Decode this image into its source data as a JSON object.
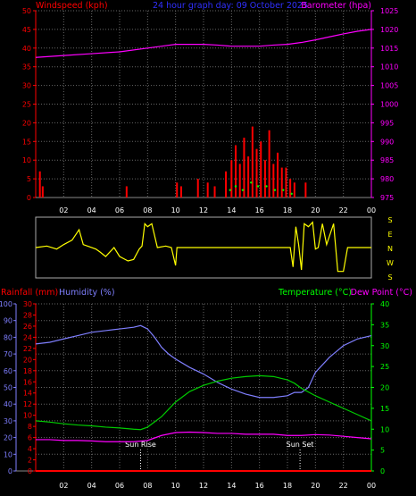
{
  "chart_data": [
    {
      "type": "line",
      "title": "24 hour graph day: 09 October 2025",
      "ylabel": "Windspeed (kph)",
      "y2label": "Barometer (hpa)",
      "ylim": [
        0,
        50
      ],
      "y2lim": [
        975,
        1025
      ],
      "yticks": [
        "0",
        "5",
        "10",
        "15",
        "20",
        "25",
        "30",
        "35",
        "40",
        "45",
        "50"
      ],
      "y2ticks": [
        "975",
        "980",
        "985",
        "990",
        "995",
        "1000",
        "1005",
        "1010",
        "1015",
        "1020",
        "1025"
      ],
      "xlim": [
        0,
        24
      ],
      "xticks": [
        "02",
        "04",
        "06",
        "08",
        "10",
        "12",
        "14",
        "16",
        "18",
        "20",
        "22",
        "00"
      ],
      "grid": true,
      "series": [
        {
          "name": "Barometer (hpa)",
          "axis": "right",
          "color": "#ff00ff",
          "x": [
            0,
            2,
            4,
            6,
            8,
            9,
            10,
            11,
            12,
            13,
            14,
            15,
            16,
            17,
            18,
            19,
            20,
            21,
            22,
            23,
            24
          ],
          "y": [
            1012.5,
            1013,
            1013.5,
            1014,
            1015,
            1015.5,
            1016,
            1016,
            1016,
            1015.8,
            1015.5,
            1015.5,
            1015.5,
            1015.8,
            1016,
            1016.5,
            1017.2,
            1018,
            1018.8,
            1019.5,
            1020
          ]
        },
        {
          "name": "Windspeed (kph)",
          "axis": "left",
          "color": "#ff0000",
          "style": "bars",
          "x": [
            0.3,
            0.5,
            6.5,
            10.1,
            10.4,
            11.6,
            12.3,
            12.8,
            13.6,
            14.0,
            14.3,
            14.6,
            14.9,
            15.2,
            15.5,
            15.8,
            16.1,
            16.4,
            16.7,
            17.0,
            17.3,
            17.6,
            17.9,
            18.2,
            18.5,
            19.3
          ],
          "y": [
            7,
            3,
            3,
            4,
            3,
            5,
            4,
            3,
            7,
            10,
            14,
            9,
            16,
            11,
            19,
            13,
            15,
            10,
            18,
            9,
            12,
            8,
            8,
            5,
            4,
            4
          ]
        },
        {
          "name": "Wind gust",
          "axis": "left",
          "color": "#00ff00",
          "style": "dots",
          "x": [
            13.9,
            14.3,
            14.8,
            15.4,
            15.9,
            16.5,
            17.1,
            17.7,
            18.3
          ],
          "y": [
            2,
            3,
            2,
            4,
            3,
            3,
            2,
            2,
            1
          ]
        }
      ]
    },
    {
      "type": "line",
      "ylabels": [
        "S",
        "E",
        "N",
        "W",
        "S"
      ],
      "xlim": [
        0,
        24
      ],
      "ylim": [
        0,
        360
      ],
      "series": [
        {
          "name": "Wind direction",
          "color": "#ffff00",
          "x": [
            0,
            0.8,
            1.5,
            2.0,
            2.6,
            3.1,
            3.4,
            3.7,
            4.3,
            4.6,
            5.0,
            5.6,
            6.0,
            6.6,
            7.0,
            7.4,
            7.6,
            7.8,
            8.0,
            8.3,
            8.7,
            9.3,
            9.7,
            10.0,
            10.1,
            10.3,
            12.5,
            14.0,
            16.0,
            17.5,
            18.2,
            18.4,
            18.6,
            18.8,
            19.0,
            19.2,
            19.5,
            19.8,
            20.0,
            20.2,
            20.5,
            20.8,
            21.3,
            21.6,
            22.0,
            22.3,
            22.7,
            24
          ],
          "y": [
            180,
            190,
            170,
            200,
            230,
            300,
            200,
            190,
            170,
            150,
            120,
            180,
            120,
            90,
            100,
            170,
            190,
            340,
            320,
            340,
            180,
            190,
            180,
            60,
            180,
            180,
            180,
            180,
            180,
            180,
            180,
            50,
            320,
            200,
            30,
            340,
            320,
            350,
            170,
            180,
            340,
            200,
            340,
            20,
            20,
            180,
            180,
            180
          ]
        }
      ]
    },
    {
      "type": "line",
      "ylabel": "Rainfall (mm)",
      "ylabel2": "Humidity (%)",
      "y2label": "Temperature (°C)",
      "y2label2": "Dew Point (°C)",
      "rain_ticks": [
        "0",
        "2",
        "4",
        "6",
        "8",
        "10",
        "12",
        "14",
        "16",
        "18",
        "20",
        "22",
        "24",
        "26",
        "28",
        "30"
      ],
      "humidity_ticks": [
        "0",
        "10",
        "20",
        "30",
        "40",
        "50",
        "60",
        "70",
        "80",
        "90",
        "100"
      ],
      "temp_ticks": [
        "0",
        "5",
        "10",
        "15",
        "20",
        "25",
        "30",
        "35",
        "40"
      ],
      "xlim": [
        0,
        24
      ],
      "xticks": [
        "02",
        "04",
        "06",
        "08",
        "10",
        "12",
        "14",
        "16",
        "18",
        "20",
        "22",
        "00"
      ],
      "annotations": [
        {
          "text": "Sun Rise",
          "x": 7.5
        },
        {
          "text": "Sun Set",
          "x": 18.9
        }
      ],
      "grid": true,
      "series": [
        {
          "name": "Humidity (%)",
          "axis": "humidity",
          "color": "#7f7fff",
          "x": [
            0,
            1,
            2,
            3,
            4,
            5,
            6,
            7,
            7.5,
            8,
            8.5,
            9,
            9.5,
            10,
            11,
            12,
            13,
            14,
            15,
            16,
            17,
            18,
            18.5,
            19,
            19.5,
            20,
            21,
            22,
            23,
            24
          ],
          "y": [
            76,
            77,
            79,
            81,
            83,
            84,
            85,
            86,
            87,
            85,
            80,
            74,
            70,
            67,
            62,
            58,
            53,
            49,
            46,
            44,
            44,
            45,
            47,
            47,
            50,
            59,
            68,
            75,
            79,
            81
          ]
        },
        {
          "name": "Temperature (°C)",
          "axis": "temp",
          "color": "#00cc00",
          "x": [
            0,
            1,
            2,
            3,
            4,
            5,
            6,
            7,
            7.5,
            8,
            9,
            10,
            11,
            12,
            13,
            14,
            15,
            16,
            17,
            18,
            18.5,
            19,
            20,
            21,
            22,
            23,
            24
          ],
          "y": [
            12,
            11.7,
            11.3,
            11,
            10.8,
            10.5,
            10.3,
            10,
            9.9,
            10.5,
            13,
            16.5,
            19,
            20.5,
            21.5,
            22.2,
            22.6,
            22.8,
            22.6,
            21.8,
            21,
            19.8,
            18,
            16.5,
            15,
            13.5,
            12
          ]
        },
        {
          "name": "Dew Point (°C)",
          "axis": "temp",
          "color": "#ff00ff",
          "x": [
            0,
            1,
            2,
            3,
            4,
            5,
            6,
            7,
            8,
            9,
            10,
            11,
            12,
            13,
            14,
            15,
            16,
            17,
            18,
            19,
            20,
            21,
            22,
            23,
            24
          ],
          "y": [
            7.5,
            7.5,
            7.3,
            7.3,
            7.2,
            7,
            7,
            7,
            7.3,
            8.5,
            9.2,
            9.3,
            9.2,
            9,
            9,
            8.8,
            8.8,
            8.8,
            8.5,
            8.5,
            8.7,
            8.6,
            8.3,
            8,
            7.7
          ]
        },
        {
          "name": "Rainfall (mm)",
          "axis": "rain",
          "color": "#ff0000",
          "x": [
            0,
            24
          ],
          "y": [
            0,
            0
          ]
        }
      ]
    }
  ]
}
